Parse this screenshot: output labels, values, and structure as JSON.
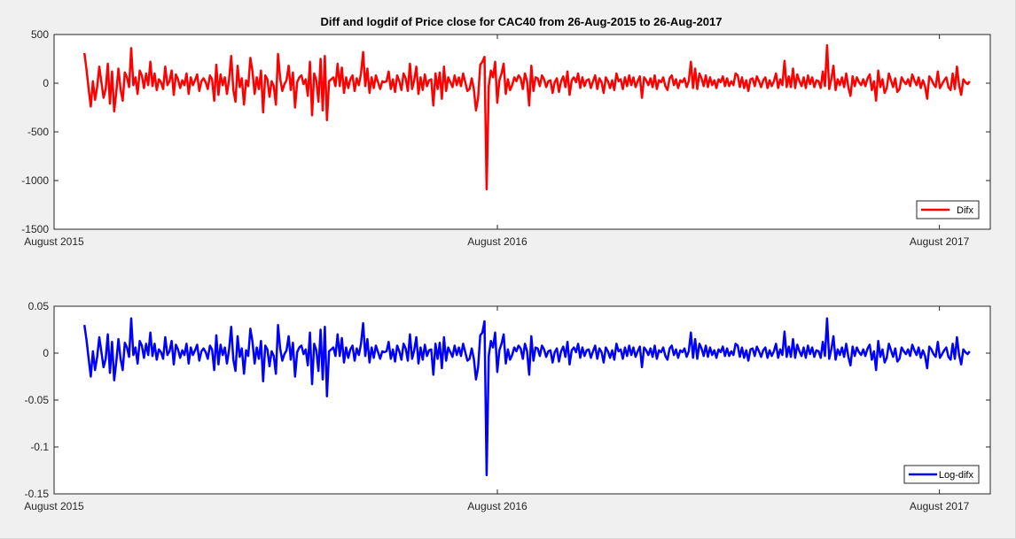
{
  "title": "Diff and logdif of Price close for CAC40 from 26-Aug-2015 to 26-Aug-2017",
  "chart_data": [
    {
      "type": "line",
      "title": "Diff and logdif of Price close for CAC40 from 26-Aug-2015 to 26-Aug-2017",
      "xlabel": "",
      "ylabel": "",
      "xlim": [
        "2015-08-01",
        "2017-09-12"
      ],
      "ylim": [
        -1500,
        500
      ],
      "yticks": [
        "500",
        "0",
        "-500",
        "-1000",
        "-1500"
      ],
      "ytick_values": [
        500,
        0,
        -500,
        -1000,
        -1500
      ],
      "xticks": [
        "August 2015",
        "August 2016",
        "August 2017"
      ],
      "xtick_dates": [
        "2015-08-01",
        "2016-08-01",
        "2017-08-01"
      ],
      "grid": false,
      "legend_position": "bottom-right",
      "series": [
        {
          "name": "Difx",
          "color": "#ff0000",
          "x_start": "2015-08-26",
          "x_end": "2017-08-26",
          "values": [
            310,
            140,
            -60,
            -240,
            20,
            -170,
            -40,
            170,
            10,
            -150,
            -60,
            200,
            -210,
            120,
            -290,
            -90,
            150,
            -60,
            -180,
            110,
            60,
            -40,
            360,
            -20,
            60,
            -110,
            130,
            80,
            -50,
            100,
            -20,
            220,
            -30,
            100,
            -70,
            40,
            10,
            -60,
            170,
            -20,
            20,
            130,
            -120,
            90,
            40,
            -50,
            30,
            -20,
            100,
            -110,
            60,
            -20,
            30,
            90,
            -80,
            20,
            50,
            10,
            -60,
            80,
            40,
            -180,
            190,
            -120,
            90,
            -20,
            60,
            -110,
            40,
            280,
            -70,
            -190,
            180,
            -40,
            50,
            -220,
            30,
            -30,
            260,
            120,
            -110,
            60,
            -60,
            130,
            -300,
            80,
            40,
            -140,
            20,
            -30,
            -220,
            300,
            50,
            -80,
            -10,
            30,
            180,
            -70,
            110,
            -250,
            10,
            60,
            80,
            -10,
            40,
            -130,
            220,
            -330,
            100,
            30,
            -190,
            250,
            -280,
            280,
            -380,
            20,
            40,
            60,
            -30,
            200,
            -30,
            160,
            -100,
            60,
            -50,
            40,
            80,
            -80,
            50,
            -20,
            100,
            320,
            -30,
            150,
            -100,
            60,
            -50,
            80,
            10,
            -60,
            20,
            10,
            20,
            120,
            -60,
            40,
            -90,
            80,
            20,
            -70,
            100,
            50,
            -80,
            200,
            -60,
            30,
            170,
            -110,
            60,
            -70,
            90,
            -30,
            30,
            40,
            -230,
            100,
            -60,
            110,
            -160,
            170,
            -80,
            60,
            10,
            -40,
            80,
            -20,
            60,
            -30,
            100,
            10,
            -80,
            -60,
            50,
            -60,
            -280,
            -150,
            190,
            220,
            270,
            -1090,
            -30,
            130,
            60,
            220,
            -200,
            30,
            100,
            200,
            -110,
            40,
            -70,
            -20,
            60,
            20,
            80,
            50,
            -60,
            100,
            20,
            -230,
            180,
            -80,
            60,
            50,
            -30,
            80,
            40,
            -40,
            20,
            30,
            -100,
            10,
            50,
            -90,
            20,
            70,
            -40,
            120,
            -120,
            30,
            60,
            10,
            100,
            -50,
            60,
            -30,
            30,
            40,
            -50,
            20,
            80,
            -60,
            50,
            10,
            -100,
            60,
            20,
            -50,
            30,
            -70,
            100,
            20,
            40,
            -60,
            60,
            -30,
            80,
            -20,
            60,
            -40,
            20,
            70,
            -150,
            60,
            30,
            -20,
            50,
            -40,
            80,
            -60,
            30,
            10,
            60,
            -30,
            -70,
            50,
            80,
            -20,
            40,
            -50,
            30,
            10,
            50,
            -40,
            20,
            220,
            -50,
            150,
            -60,
            100,
            50,
            -30,
            80,
            -40,
            60,
            -20,
            30,
            -50,
            40,
            10,
            70,
            -30,
            50,
            -30,
            20,
            -20,
            100,
            80,
            -40,
            60,
            -50,
            30,
            -80,
            40,
            50,
            -30,
            70,
            20,
            -40,
            30,
            60,
            -50,
            30,
            -30,
            20,
            100,
            -50,
            40,
            -20,
            230,
            -40,
            70,
            -40,
            150,
            -50,
            90,
            20,
            -30,
            60,
            -50,
            80,
            -10,
            60,
            -40,
            30,
            20,
            -50,
            120,
            -30,
            390,
            -60,
            40,
            180,
            -70,
            40,
            -20,
            60,
            -40,
            100,
            -40,
            -130,
            70,
            -30,
            60,
            10,
            -20,
            40,
            -30,
            50,
            90,
            -70,
            20,
            -180,
            130,
            -40,
            40,
            -100,
            -50,
            100,
            30,
            -40,
            50,
            -90,
            -60,
            60,
            20,
            -10,
            40,
            -30,
            90,
            30,
            -20,
            60,
            -50,
            30,
            -30,
            -160,
            70,
            40,
            -10,
            -40,
            120,
            -50,
            -10,
            30,
            60,
            -40,
            -70,
            100,
            -60,
            170,
            -20,
            -120,
            40,
            10,
            -10,
            20
          ]
        }
      ]
    },
    {
      "type": "line",
      "title": "",
      "xlabel": "",
      "ylabel": "",
      "xlim": [
        "2015-08-01",
        "2017-09-12"
      ],
      "ylim": [
        -0.15,
        0.05
      ],
      "yticks": [
        "0.05",
        "0",
        "-0.05",
        "-0.1",
        "-0.15"
      ],
      "ytick_values": [
        0.05,
        0,
        -0.05,
        -0.1,
        -0.15
      ],
      "xticks": [
        "August 2015",
        "August 2016",
        "August 2017"
      ],
      "xtick_dates": [
        "2015-08-01",
        "2016-08-01",
        "2017-08-01"
      ],
      "grid": false,
      "legend_position": "bottom-right",
      "series": [
        {
          "name": "Log-difx",
          "color": "#0000ff",
          "x_start": "2015-08-26",
          "x_end": "2017-08-26",
          "values": [
            0.03,
            0.014,
            -0.006,
            -0.025,
            0.002,
            -0.018,
            -0.004,
            0.017,
            0.001,
            -0.015,
            -0.006,
            0.02,
            -0.021,
            0.012,
            -0.029,
            -0.009,
            0.015,
            -0.006,
            -0.018,
            0.011,
            0.006,
            -0.004,
            0.037,
            -0.002,
            0.006,
            -0.011,
            0.013,
            0.008,
            -0.005,
            0.01,
            -0.002,
            0.022,
            -0.003,
            0.01,
            -0.007,
            0.004,
            0.001,
            -0.006,
            0.017,
            -0.002,
            0.002,
            0.013,
            -0.012,
            0.009,
            0.004,
            -0.005,
            0.003,
            -0.002,
            0.01,
            -0.011,
            0.006,
            -0.002,
            0.003,
            0.009,
            -0.008,
            0.002,
            0.005,
            0.001,
            -0.006,
            0.008,
            0.004,
            -0.018,
            0.019,
            -0.012,
            0.009,
            -0.002,
            0.006,
            -0.011,
            0.004,
            0.028,
            -0.007,
            -0.019,
            0.018,
            -0.004,
            0.005,
            -0.022,
            0.003,
            -0.003,
            0.026,
            0.012,
            -0.011,
            0.006,
            -0.006,
            0.013,
            -0.03,
            0.008,
            0.004,
            -0.014,
            0.002,
            -0.003,
            -0.022,
            0.03,
            0.005,
            -0.008,
            -0.001,
            0.003,
            0.018,
            -0.007,
            0.011,
            -0.025,
            0.001,
            0.006,
            0.008,
            -0.001,
            0.004,
            -0.013,
            0.022,
            -0.033,
            0.01,
            0.003,
            -0.019,
            0.025,
            -0.028,
            0.028,
            -0.046,
            0.002,
            0.004,
            0.006,
            -0.003,
            0.02,
            -0.003,
            0.016,
            -0.01,
            0.006,
            -0.005,
            0.004,
            0.008,
            -0.008,
            0.005,
            -0.002,
            0.01,
            0.032,
            -0.003,
            0.015,
            -0.01,
            0.006,
            -0.005,
            0.008,
            0.001,
            -0.006,
            0.002,
            0.001,
            0.002,
            0.012,
            -0.006,
            0.004,
            -0.009,
            0.008,
            0.002,
            -0.007,
            0.01,
            0.005,
            -0.008,
            0.02,
            -0.006,
            0.003,
            0.017,
            -0.011,
            0.006,
            -0.007,
            0.009,
            -0.003,
            0.003,
            0.004,
            -0.023,
            0.01,
            -0.006,
            0.011,
            -0.016,
            0.017,
            -0.008,
            0.006,
            0.001,
            -0.004,
            0.008,
            -0.002,
            0.006,
            -0.003,
            0.01,
            0.001,
            -0.008,
            -0.006,
            0.005,
            -0.006,
            -0.028,
            -0.015,
            0.019,
            0.022,
            0.034,
            -0.13,
            -0.003,
            0.013,
            0.006,
            0.022,
            -0.02,
            0.003,
            0.01,
            0.02,
            -0.011,
            0.004,
            -0.007,
            -0.002,
            0.006,
            0.002,
            0.008,
            0.005,
            -0.006,
            0.01,
            0.002,
            -0.023,
            0.018,
            -0.008,
            0.006,
            0.005,
            -0.003,
            0.008,
            0.004,
            -0.004,
            0.002,
            0.003,
            -0.01,
            0.001,
            0.005,
            -0.009,
            0.002,
            0.007,
            -0.004,
            0.012,
            -0.012,
            0.003,
            0.006,
            0.001,
            0.01,
            -0.005,
            0.006,
            -0.003,
            0.003,
            0.004,
            -0.005,
            0.002,
            0.008,
            -0.006,
            0.005,
            0.001,
            -0.01,
            0.006,
            0.002,
            -0.005,
            0.003,
            -0.007,
            0.01,
            0.002,
            0.004,
            -0.006,
            0.006,
            -0.003,
            0.008,
            -0.002,
            0.006,
            -0.004,
            0.002,
            0.007,
            -0.015,
            0.006,
            0.003,
            -0.002,
            0.005,
            -0.004,
            0.008,
            -0.006,
            0.003,
            0.001,
            0.006,
            -0.003,
            -0.007,
            0.005,
            0.008,
            -0.002,
            0.004,
            -0.005,
            0.003,
            0.001,
            0.005,
            -0.004,
            0.002,
            0.022,
            -0.005,
            0.015,
            -0.006,
            0.01,
            0.005,
            -0.003,
            0.008,
            -0.004,
            0.006,
            -0.002,
            0.003,
            -0.005,
            0.004,
            0.001,
            0.007,
            -0.003,
            0.005,
            -0.003,
            0.002,
            -0.002,
            0.01,
            0.008,
            -0.004,
            0.006,
            -0.005,
            0.003,
            -0.008,
            0.004,
            0.005,
            -0.003,
            0.007,
            0.002,
            -0.004,
            0.003,
            0.006,
            -0.005,
            0.003,
            -0.003,
            0.002,
            0.01,
            -0.005,
            0.004,
            -0.002,
            0.023,
            -0.004,
            0.007,
            -0.004,
            0.015,
            -0.005,
            0.009,
            0.002,
            -0.003,
            0.006,
            -0.005,
            0.008,
            -0.001,
            0.006,
            -0.004,
            0.003,
            0.002,
            -0.005,
            0.012,
            -0.003,
            0.037,
            -0.006,
            0.004,
            0.018,
            -0.007,
            0.004,
            -0.002,
            0.006,
            -0.004,
            0.01,
            -0.004,
            -0.013,
            0.007,
            -0.003,
            0.006,
            0.001,
            -0.002,
            0.004,
            -0.003,
            0.005,
            0.009,
            -0.007,
            0.002,
            -0.018,
            0.013,
            -0.004,
            0.004,
            -0.01,
            -0.005,
            0.01,
            0.003,
            -0.004,
            0.005,
            -0.009,
            -0.006,
            0.006,
            0.002,
            -0.001,
            0.004,
            -0.003,
            0.009,
            0.003,
            -0.002,
            0.006,
            -0.005,
            0.003,
            -0.003,
            -0.016,
            0.007,
            0.004,
            -0.001,
            -0.004,
            0.012,
            -0.005,
            -0.001,
            0.003,
            0.006,
            -0.004,
            -0.007,
            0.01,
            -0.006,
            0.017,
            -0.002,
            -0.012,
            0.004,
            0.001,
            -0.001,
            0.002
          ]
        }
      ]
    }
  ]
}
